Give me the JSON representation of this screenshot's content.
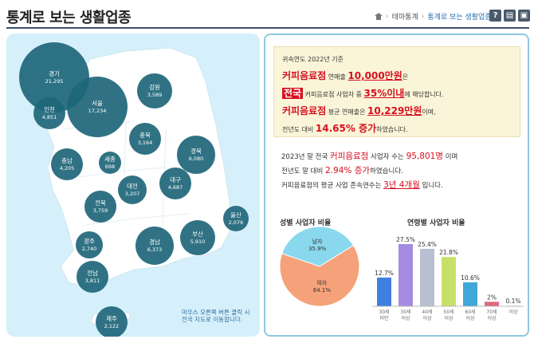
{
  "header": {
    "title": "통계로 보는 생활업종",
    "breadcrumb": [
      "테마통계",
      "통계로 보는 생활업종"
    ],
    "tools": [
      {
        "glyph": "?",
        "icon": "help-icon"
      },
      {
        "glyph": "▤",
        "icon": "print-icon"
      },
      {
        "glyph": "▣",
        "icon": "save-icon"
      }
    ]
  },
  "map": {
    "regions": [
      {
        "name": "경기",
        "value": "21,295"
      },
      {
        "name": "서울",
        "value": "17,234"
      },
      {
        "name": "인천",
        "value": "4,851"
      },
      {
        "name": "강원",
        "value": "3,589"
      },
      {
        "name": "충북",
        "value": "3,164"
      },
      {
        "name": "충남",
        "value": "4,205"
      },
      {
        "name": "세종",
        "value": "698"
      },
      {
        "name": "경북",
        "value": "6,080"
      },
      {
        "name": "대전",
        "value": "3,207"
      },
      {
        "name": "대구",
        "value": "4,687"
      },
      {
        "name": "전북",
        "value": "3,759"
      },
      {
        "name": "울산",
        "value": "2,076"
      },
      {
        "name": "경남",
        "value": "6,373"
      },
      {
        "name": "부산",
        "value": "5,910"
      },
      {
        "name": "광주",
        "value": "2,740"
      },
      {
        "name": "전남",
        "value": "3,811"
      },
      {
        "name": "제주",
        "value": "2,122"
      }
    ],
    "hint": "마우스 오른쪽 버튼 클릭 시 전국 지도로 이동합니다."
  },
  "summary": {
    "line1": "귀속연도 2022년 기준",
    "l2_a": "커피음료점",
    "l2_b": " 연매출 ",
    "l2_c": "10,000만원",
    "l2_d": "은",
    "l3_a": "전국",
    "l3_b": " 커피음료점 사업자 중 ",
    "l3_c": "35%이내",
    "l3_d": "에 해당합니다.",
    "l4_a": "커피음료점",
    "l4_b": " 평균 연매출은 ",
    "l4_c": "10,229만원",
    "l4_d": "이며,",
    "l5_a": "전년도 대비 ",
    "l5_b": "14.65% 증가",
    "l5_c": "하였습니다."
  },
  "stats": {
    "s1_a": "2023년 말 전국 ",
    "s1_b": "커피음료점",
    "s1_c": " 사업자 수는 ",
    "s1_d": "95,801명",
    "s1_e": " 이며",
    "s2_a": "전년도 말 대비 ",
    "s2_b": "2.94% 증가",
    "s2_c": "하였습니다.",
    "s3_a": "커피음료점의 평균 사업 존속연수는 ",
    "s3_b": "3년 4개월",
    "s3_c": " 입니다."
  },
  "chart_data": [
    {
      "type": "pie",
      "title": "성별 사업자 비율",
      "slices": [
        {
          "label": "남자",
          "value": 35.9,
          "display": "35.9%",
          "color": "#8ad8ee"
        },
        {
          "label": "여자",
          "value": 64.1,
          "display": "64.1%",
          "color": "#f5a27a"
        }
      ]
    },
    {
      "type": "bar",
      "title": "연령별 사업자 비율",
      "categories": [
        "30세 미만",
        "30세 이상",
        "40세 이상",
        "50세 이상",
        "60세 이상",
        "70세 이상"
      ],
      "category_lines": [
        [
          "30세",
          "미만"
        ],
        [
          "30세",
          "이상"
        ],
        [
          "40세",
          "이상"
        ],
        [
          "50세",
          "이상"
        ],
        [
          "60세",
          "이상"
        ],
        [
          "70세",
          "이상"
        ]
      ],
      "values": [
        12.7,
        27.5,
        25.4,
        21.8,
        10.6,
        2.0
      ],
      "labels": [
        "12.7%",
        "27.5%",
        "25.4%",
        "21.8%",
        "10.6%",
        "2%",
        "0.1%"
      ],
      "extra_category": "이상",
      "extra_value": 0.1,
      "colors": [
        "#3e7fe0",
        "#a58ce0",
        "#b7bfd0",
        "#c8e06a",
        "#3fa8d6",
        "#e0697e",
        "#e8e8e8"
      ]
    }
  ]
}
